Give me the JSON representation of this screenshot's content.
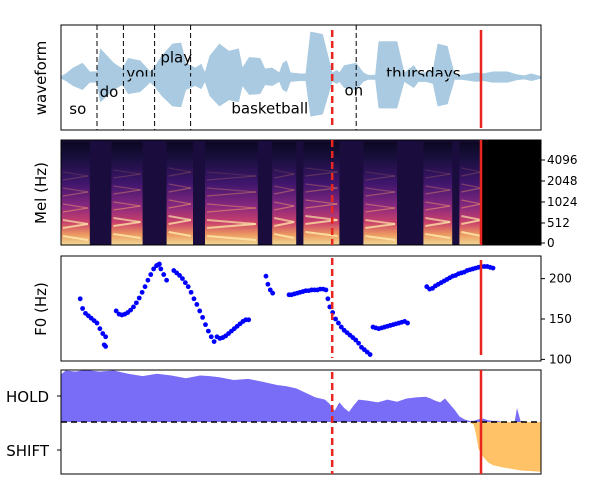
{
  "chart_data": [
    {
      "panel": "waveform",
      "type": "area",
      "ylabel": "waveform",
      "x_range": [
        0,
        1
      ],
      "waveform_envelope": [
        [
          0.0,
          0.02
        ],
        [
          0.01,
          0.08
        ],
        [
          0.025,
          0.2
        ],
        [
          0.045,
          0.3
        ],
        [
          0.06,
          0.12
        ],
        [
          0.075,
          0.12
        ],
        [
          0.082,
          0.6
        ],
        [
          0.11,
          0.3
        ],
        [
          0.128,
          0.18
        ],
        [
          0.14,
          0.4
        ],
        [
          0.165,
          0.35
        ],
        [
          0.186,
          0.12
        ],
        [
          0.195,
          0.22
        ],
        [
          0.21,
          0.45
        ],
        [
          0.232,
          0.7
        ],
        [
          0.25,
          0.72
        ],
        [
          0.26,
          0.3
        ],
        [
          0.28,
          0.2
        ],
        [
          0.292,
          0.28
        ],
        [
          0.3,
          0.1
        ],
        [
          0.31,
          0.45
        ],
        [
          0.33,
          0.7
        ],
        [
          0.35,
          0.55
        ],
        [
          0.37,
          0.6
        ],
        [
          0.378,
          0.2
        ],
        [
          0.392,
          0.42
        ],
        [
          0.415,
          0.4
        ],
        [
          0.425,
          0.18
        ],
        [
          0.44,
          0.2
        ],
        [
          0.455,
          0.1
        ],
        [
          0.462,
          0.3
        ],
        [
          0.47,
          0.35
        ],
        [
          0.478,
          0.1
        ],
        [
          0.498,
          0.08
        ],
        [
          0.51,
          0.08
        ],
        [
          0.52,
          0.95
        ],
        [
          0.545,
          0.9
        ],
        [
          0.565,
          0.1
        ],
        [
          0.575,
          0.15
        ],
        [
          0.58,
          0.1
        ],
        [
          0.59,
          0.25
        ],
        [
          0.615,
          0.3
        ],
        [
          0.63,
          0.1
        ],
        [
          0.64,
          0.05
        ],
        [
          0.655,
          0.05
        ],
        [
          0.662,
          0.75
        ],
        [
          0.7,
          0.75
        ],
        [
          0.715,
          0.1
        ],
        [
          0.735,
          0.25
        ],
        [
          0.745,
          0.1
        ],
        [
          0.76,
          0.1
        ],
        [
          0.775,
          0.15
        ],
        [
          0.785,
          0.7
        ],
        [
          0.805,
          0.65
        ],
        [
          0.82,
          0.05
        ],
        [
          0.835,
          0.05
        ],
        [
          0.865,
          0.1
        ],
        [
          0.88,
          0.08
        ],
        [
          0.9,
          0.12
        ],
        [
          0.93,
          0.12
        ],
        [
          0.95,
          0.06
        ],
        [
          0.965,
          0.04
        ],
        [
          0.98,
          0.08
        ],
        [
          1.0,
          0.02
        ]
      ],
      "word_boundaries": [
        0.075,
        0.13,
        0.195,
        0.27
      ],
      "words": [
        {
          "text": "so",
          "x": 0.035,
          "y": -0.66
        },
        {
          "text": "do",
          "x": 0.1,
          "y": -0.3
        },
        {
          "text": "you",
          "x": 0.165,
          "y": 0.08
        },
        {
          "text": "play",
          "x": 0.24,
          "y": 0.42
        },
        {
          "text": "basketball",
          "x": 0.435,
          "y": -0.65
        },
        {
          "text": "on",
          "x": 0.61,
          "y": -0.27
        },
        {
          "text": "thursdays",
          "x": 0.755,
          "y": 0.08
        }
      ]
    },
    {
      "panel": "mel spectrogram",
      "type": "heatmap",
      "ylabel": "Mel (Hz)",
      "yticks": [
        "0",
        "512",
        "1024",
        "2048",
        "4096"
      ],
      "x_range": [
        0,
        1
      ],
      "voiced_segments": [
        [
          0.0,
          0.06
        ],
        [
          0.105,
          0.17
        ],
        [
          0.22,
          0.275
        ],
        [
          0.3,
          0.41
        ],
        [
          0.44,
          0.49
        ],
        [
          0.505,
          0.58
        ],
        [
          0.63,
          0.7
        ],
        [
          0.755,
          0.815
        ],
        [
          0.83,
          0.88
        ]
      ]
    },
    {
      "panel": "pitch",
      "type": "scatter",
      "ylabel": "F0 (Hz)",
      "yticks": [
        100,
        150,
        200
      ],
      "ylim": [
        98,
        228
      ],
      "x_range": [
        0,
        1
      ],
      "series": [
        {
          "x": [
            0.04,
            0.045,
            0.051,
            0.057,
            0.063,
            0.069,
            0.075,
            0.081,
            0.087,
            0.093
          ],
          "y": [
            175,
            163,
            157,
            154,
            151,
            148,
            145,
            138,
            132,
            128
          ]
        },
        {
          "x": [
            0.09,
            0.093
          ],
          "y": [
            118,
            116
          ]
        },
        {
          "x": [
            0.115,
            0.121,
            0.127,
            0.133,
            0.139,
            0.145,
            0.151,
            0.157,
            0.163,
            0.169,
            0.175,
            0.181,
            0.187,
            0.193,
            0.199,
            0.205
          ],
          "y": [
            160,
            156,
            155,
            156,
            158,
            161,
            165,
            170,
            176,
            183,
            190,
            198,
            205,
            212,
            216,
            218
          ]
        },
        {
          "x": [
            0.202,
            0.208,
            0.214,
            0.22
          ],
          "y": [
            217,
            212,
            205,
            198
          ]
        },
        {
          "x": [
            0.235,
            0.241,
            0.247,
            0.253,
            0.259,
            0.265,
            0.271,
            0.277,
            0.283,
            0.289,
            0.295,
            0.301,
            0.307,
            0.313,
            0.319
          ],
          "y": [
            210,
            207,
            204,
            200,
            195,
            190,
            183,
            175,
            168,
            160,
            152,
            143,
            135,
            128,
            122
          ]
        },
        {
          "x": [
            0.325,
            0.331,
            0.337,
            0.343,
            0.349,
            0.355,
            0.361,
            0.367,
            0.373,
            0.379,
            0.385,
            0.391
          ],
          "y": [
            128,
            126,
            127,
            129,
            132,
            135,
            138,
            141,
            144,
            147,
            149,
            149
          ]
        },
        {
          "x": [
            0.427,
            0.431,
            0.436,
            0.441
          ],
          "y": [
            203,
            193,
            186,
            182
          ]
        },
        {
          "x": [
            0.475,
            0.48,
            0.486,
            0.492,
            0.498,
            0.504,
            0.51,
            0.516,
            0.522,
            0.528,
            0.534,
            0.54,
            0.546,
            0.552
          ],
          "y": [
            180,
            180,
            181,
            182,
            183,
            184,
            185,
            185,
            186,
            186,
            186,
            187,
            187,
            186
          ]
        },
        {
          "x": [
            0.556,
            0.56,
            0.566,
            0.572,
            0.578,
            0.584,
            0.59,
            0.596,
            0.602,
            0.608,
            0.614,
            0.62,
            0.626,
            0.632,
            0.638,
            0.644
          ],
          "y": [
            175,
            165,
            158,
            150,
            145,
            140,
            136,
            133,
            130,
            127,
            124,
            120,
            115,
            112,
            109,
            106
          ]
        },
        {
          "x": [
            0.65,
            0.656,
            0.662,
            0.668,
            0.674,
            0.68,
            0.686,
            0.692,
            0.698,
            0.704,
            0.71,
            0.716,
            0.722
          ],
          "y": [
            140,
            139,
            138,
            139,
            140,
            141,
            142,
            143,
            144,
            145,
            146,
            147,
            145
          ]
        },
        {
          "x": [
            0.762,
            0.768,
            0.774,
            0.78,
            0.786,
            0.792,
            0.798,
            0.804,
            0.81,
            0.816,
            0.822,
            0.828,
            0.834,
            0.84,
            0.846,
            0.852,
            0.858,
            0.864,
            0.87,
            0.876,
            0.882,
            0.888,
            0.894,
            0.9
          ],
          "y": [
            190,
            187,
            188,
            191,
            193,
            195,
            197,
            199,
            201,
            203,
            204,
            206,
            207,
            208,
            210,
            211,
            212,
            213,
            214,
            215,
            215,
            215,
            214,
            213
          ]
        }
      ]
    },
    {
      "panel": "turn-taking prediction",
      "type": "area",
      "yticks": [
        "HOLD",
        "SHIFT"
      ],
      "ylim": [
        -1,
        1
      ],
      "x_range": [
        0,
        1
      ],
      "threshold": 0,
      "series": [
        {
          "name": "hold",
          "color": "#6a5cf5",
          "x": [
            0.0,
            0.01,
            0.03,
            0.05,
            0.08,
            0.11,
            0.14,
            0.17,
            0.2,
            0.23,
            0.26,
            0.29,
            0.31,
            0.33,
            0.36,
            0.39,
            0.42,
            0.45,
            0.47,
            0.49,
            0.51,
            0.53,
            0.55,
            0.56,
            0.57,
            0.58,
            0.59,
            0.6,
            0.61,
            0.62,
            0.64,
            0.66,
            0.68,
            0.7,
            0.72,
            0.74,
            0.76,
            0.77,
            0.78,
            0.79,
            0.8,
            0.81,
            0.82,
            0.83,
            0.84,
            0.85,
            0.86,
            0.87,
            0.88,
            0.89,
            0.9,
            0.91,
            0.92,
            0.93,
            0.95,
            0.96,
            0.97,
            0.98,
            0.99,
            1.0
          ],
          "values": [
            0.85,
            0.92,
            0.9,
            0.93,
            0.9,
            0.92,
            0.86,
            0.82,
            0.86,
            0.83,
            0.78,
            0.83,
            0.82,
            0.8,
            0.75,
            0.77,
            0.72,
            0.66,
            0.64,
            0.6,
            0.52,
            0.44,
            0.4,
            0.32,
            0.2,
            0.35,
            0.25,
            0.18,
            0.3,
            0.4,
            0.38,
            0.35,
            0.4,
            0.36,
            0.42,
            0.44,
            0.45,
            0.42,
            0.38,
            0.35,
            0.42,
            0.32,
            0.22,
            0.1,
            0.05,
            0.02,
            0.02,
            0.05,
            0.06,
            0.03,
            0.02,
            0.02,
            0.0,
            0.0,
            0.0,
            0.02,
            0.0,
            0.0,
            0.0,
            0.0
          ]
        },
        {
          "name": "shift",
          "color": "#ffbb55",
          "x": [
            0.85,
            0.86,
            0.865,
            0.87,
            0.88,
            0.89,
            0.9,
            0.92,
            0.94,
            0.96,
            0.98,
            1.0
          ],
          "values": [
            0.0,
            -0.05,
            -0.25,
            -0.5,
            -0.65,
            -0.75,
            -0.8,
            -0.84,
            -0.87,
            -0.9,
            -0.91,
            -0.92
          ]
        }
      ],
      "hold_blip": {
        "x": [
          0.945,
          0.95,
          0.958
        ],
        "values": [
          0.0,
          0.25,
          0.0
        ]
      }
    }
  ],
  "markers": {
    "dashed_line_x": 0.565,
    "solid_line_x": 0.875,
    "color": "#e8251e"
  }
}
